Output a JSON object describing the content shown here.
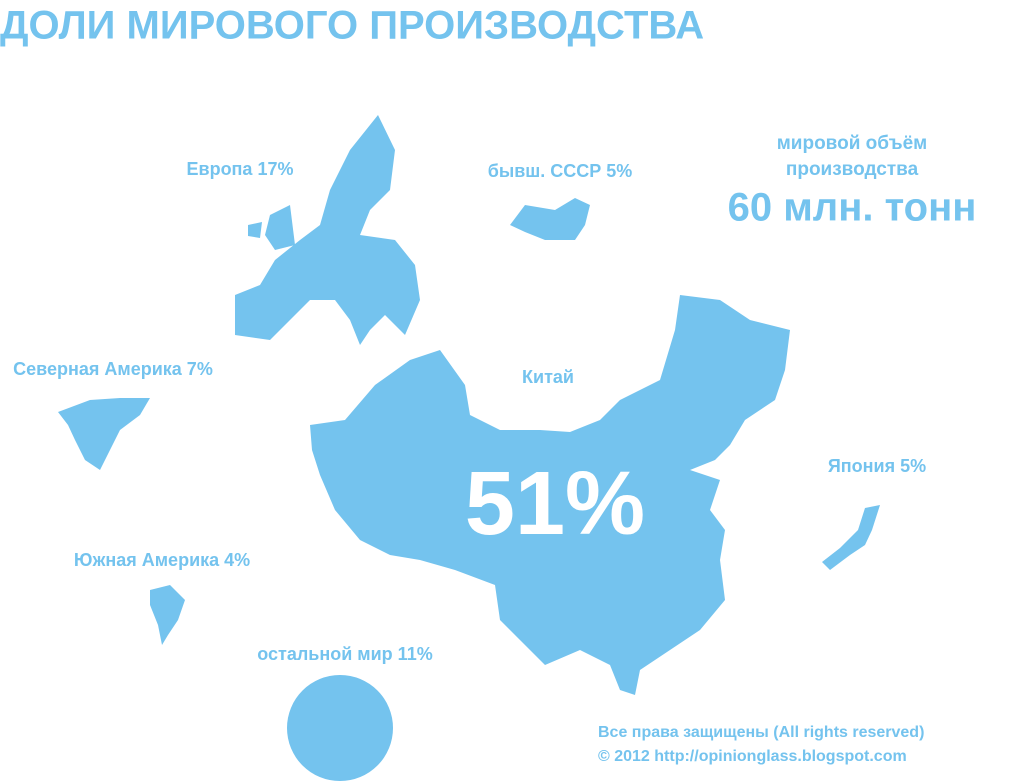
{
  "title": "ДОЛИ МИРОВОГО ПРОИЗВОДСТВА",
  "total": {
    "caption": [
      "мировой объём",
      "производства"
    ],
    "value": "60 млн. тонн"
  },
  "regions": [
    {
      "label": "Европа 17%"
    },
    {
      "label": "бывш. СССР 5%"
    },
    {
      "label": "Северная Америка 7%"
    },
    {
      "label": "Китай"
    },
    {
      "label": "Япония 5%"
    },
    {
      "label": "Южная Америка 4%"
    },
    {
      "label": "остальной мир 11%"
    }
  ],
  "china_share": "51%",
  "footer": [
    "Все права защищены (All rights reserved)",
    "© 2012 http://opinionglass.blogspot.com"
  ]
}
